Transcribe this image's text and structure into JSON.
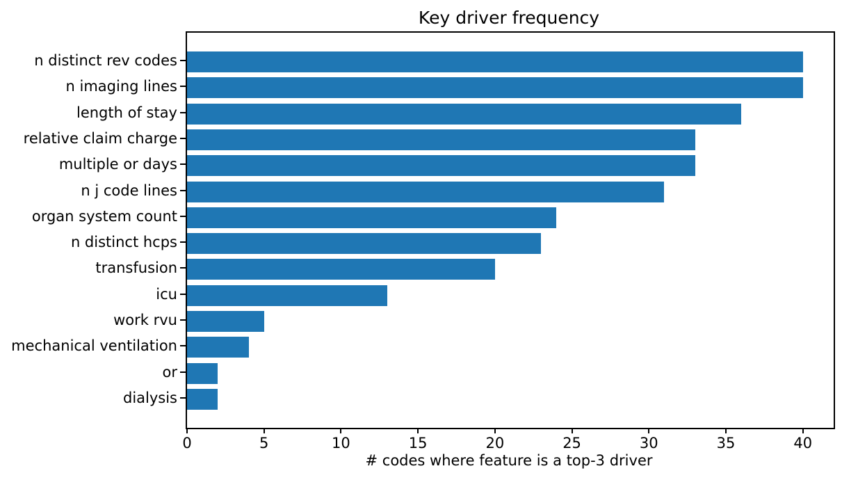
{
  "chart_data": {
    "type": "bar",
    "orientation": "horizontal",
    "title": "Key driver frequency",
    "xlabel": "# codes where feature is a top-3 driver",
    "ylabel": "",
    "categories": [
      "n distinct rev codes",
      "n imaging lines",
      "length of stay",
      "relative claim charge",
      "multiple or days",
      "n j code lines",
      "organ system count",
      "n distinct hcps",
      "transfusion",
      "icu",
      "work rvu",
      "mechanical ventilation",
      "or",
      "dialysis"
    ],
    "values": [
      40,
      40,
      36,
      33,
      33,
      31,
      24,
      23,
      20,
      13,
      5,
      4,
      2,
      2
    ],
    "xlim": [
      0,
      42
    ],
    "xticks": [
      0,
      5,
      10,
      15,
      20,
      25,
      30,
      35,
      40
    ],
    "bar_color": "#1f77b4",
    "axis_color": "#000000",
    "grid": false,
    "legend": null
  }
}
